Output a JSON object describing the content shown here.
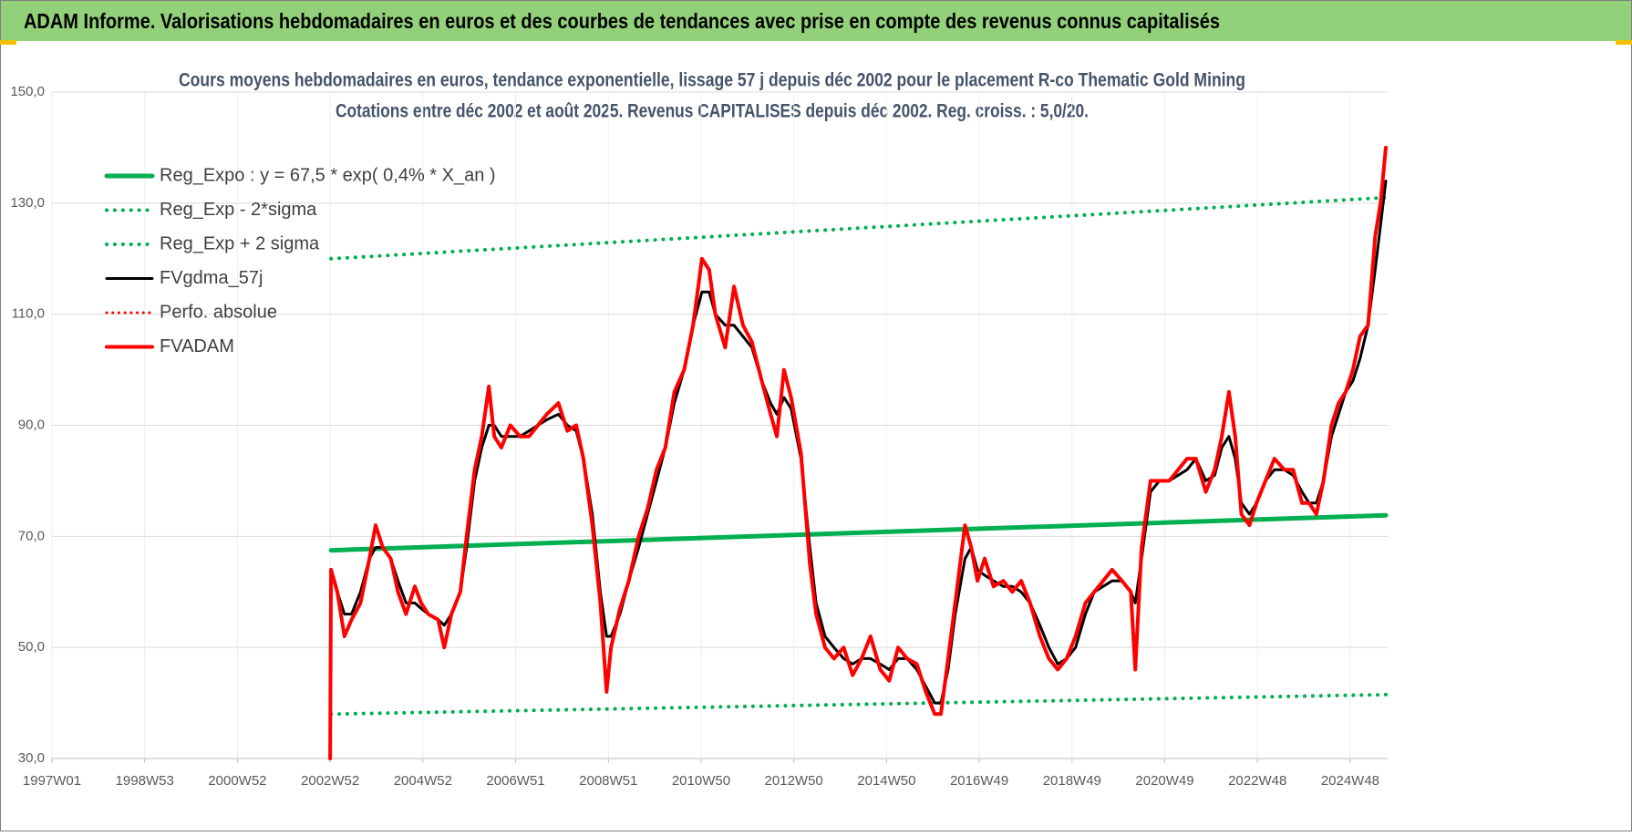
{
  "header": {
    "title": "ADAM Informe. Valorisations hebdomadaires en euros et des courbes de tendances avec prise en compte des revenus connus capitalisés"
  },
  "chart_data": {
    "type": "line",
    "title": "Cours moyens hebdomadaires en euros, tendance exponentielle, lissage 57 j depuis déc 2002 pour le placement R-co Thematic Gold Mining",
    "subtitle": "Cotations entre déc 2002 et août 2025. Revenus CAPITALISES depuis déc 2002. Reg. croiss. : 5,0/20.",
    "legend_position": "upper left",
    "grid": true,
    "xlim": [
      0,
      1498
    ],
    "xticks": [
      {
        "value": 0,
        "label": "1997W01"
      },
      {
        "value": 104,
        "label": "1998W53"
      },
      {
        "value": 208,
        "label": "2000W52"
      },
      {
        "value": 312,
        "label": "2002W52"
      },
      {
        "value": 416,
        "label": "2004W52"
      },
      {
        "value": 520,
        "label": "2006W51"
      },
      {
        "value": 624,
        "label": "2008W51"
      },
      {
        "value": 728,
        "label": "2010W50"
      },
      {
        "value": 832,
        "label": "2012W50"
      },
      {
        "value": 936,
        "label": "2014W50"
      },
      {
        "value": 1040,
        "label": "2016W49"
      },
      {
        "value": 1144,
        "label": "2018W49"
      },
      {
        "value": 1248,
        "label": "2020W49"
      },
      {
        "value": 1352,
        "label": "2022W48"
      },
      {
        "value": 1456,
        "label": "2024W48"
      }
    ],
    "ylim": [
      30,
      150
    ],
    "yticks": [
      {
        "value": 30,
        "label": "30,0"
      },
      {
        "value": 50,
        "label": "50,0"
      },
      {
        "value": 70,
        "label": "70,0"
      },
      {
        "value": 90,
        "label": "90,0"
      },
      {
        "value": 110,
        "label": "110,0"
      },
      {
        "value": 130,
        "label": "130,0"
      },
      {
        "value": 150,
        "label": "150,0"
      }
    ],
    "x": [
      312,
      313,
      320,
      328,
      336,
      346,
      356,
      363,
      371,
      380,
      388,
      397,
      407,
      414,
      422,
      433,
      440,
      448,
      458,
      465,
      474,
      482,
      490,
      496,
      504,
      514,
      525,
      535,
      545,
      555,
      568,
      578,
      588,
      596,
      606,
      615,
      622,
      627,
      637,
      647,
      658,
      668,
      678,
      688,
      698,
      709,
      719,
      729,
      737,
      744,
      755,
      765,
      775,
      785,
      796,
      806,
      813,
      821,
      829,
      840,
      850,
      857,
      867,
      877,
      888,
      898,
      908,
      918,
      929,
      939,
      949,
      959,
      970,
      980,
      990,
      997,
      1005,
      1013,
      1024,
      1031,
      1038,
      1046,
      1056,
      1067,
      1077,
      1087,
      1097,
      1108,
      1118,
      1128,
      1138,
      1148,
      1159,
      1169,
      1179,
      1189,
      1200,
      1210,
      1215,
      1222,
      1232,
      1242,
      1253,
      1263,
      1273,
      1283,
      1294,
      1304,
      1312,
      1320,
      1327,
      1334,
      1343,
      1351,
      1361,
      1371,
      1382,
      1392,
      1402,
      1410,
      1418,
      1426,
      1435,
      1443,
      1451,
      1459,
      1467,
      1476,
      1484,
      1490,
      1496
    ],
    "series": [
      {
        "name": "Reg_Expo : y = 67,5 * exp( 0,4% *  X_an )",
        "color": "#00b050",
        "dashed": false,
        "width": 5,
        "x": [
          313,
          1496
        ],
        "values": [
          67.5,
          73.8
        ]
      },
      {
        "name": "Reg_Exp - 2*sigma",
        "color": "#00b050",
        "dashed": true,
        "width": 4,
        "x": [
          313,
          1496
        ],
        "values": [
          38,
          41.5
        ]
      },
      {
        "name": "Reg_Exp + 2 sigma",
        "color": "#00b050",
        "dashed": true,
        "width": 4,
        "x": [
          313,
          1496
        ],
        "values": [
          120,
          131
        ]
      },
      {
        "name": "FVgdma_57j",
        "color": "#000000",
        "dashed": false,
        "width": 3,
        "values": [
          null,
          64,
          60,
          56,
          56,
          60,
          66,
          68,
          68,
          66,
          62,
          58,
          58,
          57,
          56,
          55,
          54,
          56,
          60,
          68,
          80,
          86,
          90,
          90,
          88,
          88,
          88,
          89,
          90,
          91,
          92,
          90,
          89,
          84,
          74,
          60,
          52,
          52,
          56,
          62,
          68,
          74,
          80,
          86,
          94,
          100,
          108,
          114,
          114,
          110,
          108,
          108,
          106,
          104,
          98,
          94,
          92,
          95,
          93,
          84,
          68,
          58,
          52,
          50,
          48,
          47,
          48,
          48,
          47,
          46,
          48,
          48,
          46,
          43,
          40,
          40,
          46,
          56,
          66,
          68,
          64,
          63,
          62,
          61,
          61,
          60,
          58,
          54,
          50,
          47,
          48,
          50,
          56,
          60,
          61,
          62,
          62,
          60,
          58,
          66,
          78,
          80,
          80,
          81,
          82,
          84,
          80,
          81,
          86,
          88,
          84,
          76,
          74,
          76,
          80,
          82,
          82,
          81,
          78,
          76,
          76,
          80,
          88,
          92,
          96,
          98,
          102,
          108,
          118,
          126,
          134
        ]
      },
      {
        "name": "Perfo. absolue",
        "color": "#ff0000",
        "dashed": true,
        "width": 3,
        "x": [],
        "values": []
      },
      {
        "name": "FVADAM",
        "color": "#ff0000",
        "dashed": false,
        "width": 4,
        "values": [
          30,
          64,
          60,
          52,
          55,
          58,
          66,
          72,
          68,
          66,
          60,
          56,
          61,
          58,
          56,
          55,
          50,
          56,
          60,
          70,
          82,
          88,
          97,
          88,
          86,
          90,
          88,
          88,
          90,
          92,
          94,
          89,
          90,
          84,
          72,
          58,
          42,
          50,
          57,
          62,
          70,
          75,
          82,
          86,
          96,
          100,
          108,
          120,
          118,
          110,
          104,
          115,
          108,
          105,
          98,
          92,
          88,
          100,
          95,
          85,
          65,
          56,
          50,
          48,
          50,
          45,
          48,
          52,
          46,
          44,
          50,
          48,
          47,
          42,
          38,
          38,
          48,
          58,
          72,
          68,
          62,
          66,
          61,
          62,
          60,
          62,
          58,
          52,
          48,
          46,
          48,
          52,
          58,
          60,
          62,
          64,
          62,
          60,
          46,
          68,
          80,
          80,
          80,
          82,
          84,
          84,
          78,
          82,
          88,
          96,
          88,
          74,
          72,
          76,
          80,
          84,
          82,
          82,
          76,
          76,
          74,
          80,
          90,
          94,
          96,
          100,
          106,
          108,
          124,
          130,
          140
        ]
      }
    ]
  }
}
